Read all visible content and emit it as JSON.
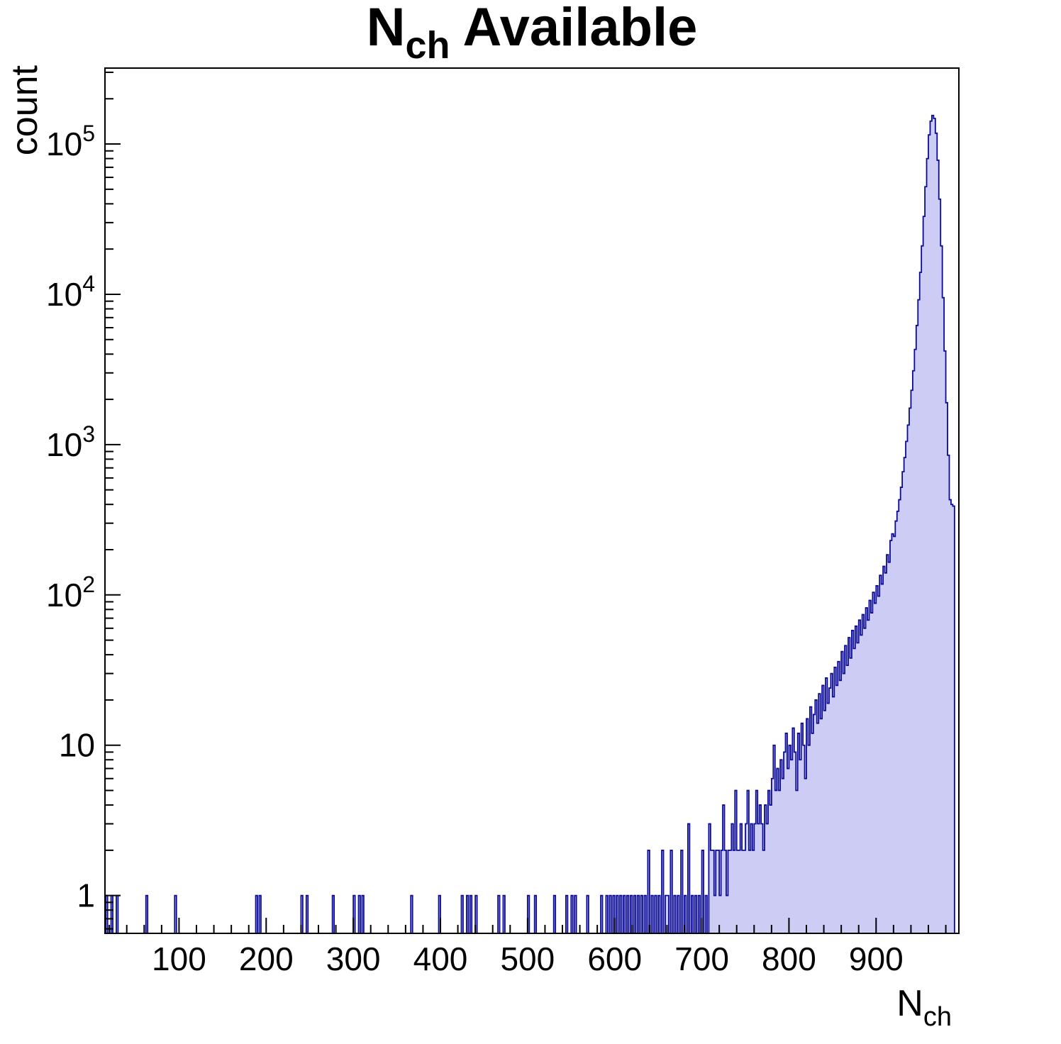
{
  "page": {
    "background": "#ffffff"
  },
  "chart_data": {
    "type": "histogram",
    "title": {
      "main": "N",
      "sub": "ch",
      "rest": "Available"
    },
    "ylabel": "count",
    "xlabel": {
      "main": "N",
      "sub": "ch"
    },
    "x_range": [
      15,
      995
    ],
    "y_range": [
      0.56,
      320000
    ],
    "y_scale": "log",
    "grid": false,
    "bin_width": 2,
    "x_ticks": [
      100,
      200,
      300,
      400,
      500,
      600,
      700,
      800,
      900
    ],
    "x_minor_step": 20,
    "y_ticks": [
      1,
      10,
      100,
      1000,
      10000,
      100000
    ],
    "colors": {
      "fill": "#ccccf4",
      "line": "#0a0a96",
      "axis": "#000000",
      "text": "#000000"
    },
    "bins": [
      [
        16,
        1
      ],
      [
        22,
        1
      ],
      [
        28,
        1
      ],
      [
        62,
        1
      ],
      [
        95,
        1
      ],
      [
        188,
        1
      ],
      [
        192,
        1
      ],
      [
        240,
        1
      ],
      [
        246,
        1
      ],
      [
        276,
        1
      ],
      [
        300,
        1
      ],
      [
        306,
        1
      ],
      [
        310,
        1
      ],
      [
        366,
        1
      ],
      [
        398,
        1
      ],
      [
        424,
        1
      ],
      [
        430,
        1
      ],
      [
        434,
        1
      ],
      [
        440,
        1
      ],
      [
        466,
        1
      ],
      [
        472,
        1
      ],
      [
        500,
        1
      ],
      [
        508,
        1
      ],
      [
        530,
        1
      ],
      [
        544,
        1
      ],
      [
        550,
        1
      ],
      [
        554,
        1
      ],
      [
        568,
        1
      ],
      [
        584,
        1
      ],
      [
        590,
        1
      ],
      [
        594,
        1
      ],
      [
        598,
        1
      ],
      [
        602,
        1
      ],
      [
        606,
        1
      ],
      [
        610,
        1
      ],
      [
        614,
        1
      ],
      [
        618,
        1
      ],
      [
        622,
        1
      ],
      [
        626,
        1
      ],
      [
        630,
        1
      ],
      [
        634,
        1
      ],
      [
        638,
        2
      ],
      [
        642,
        1
      ],
      [
        646,
        1
      ],
      [
        650,
        1
      ],
      [
        654,
        2
      ],
      [
        658,
        1
      ],
      [
        660,
        1
      ],
      [
        664,
        2
      ],
      [
        668,
        1
      ],
      [
        672,
        1
      ],
      [
        676,
        2
      ],
      [
        680,
        1
      ],
      [
        684,
        3
      ],
      [
        688,
        1
      ],
      [
        692,
        1
      ],
      [
        696,
        1
      ],
      [
        700,
        2
      ],
      [
        704,
        1
      ],
      [
        708,
        3
      ],
      [
        710,
        2
      ],
      [
        712,
        2
      ],
      [
        714,
        1
      ],
      [
        716,
        2
      ],
      [
        718,
        2
      ],
      [
        720,
        1
      ],
      [
        722,
        2
      ],
      [
        724,
        4
      ],
      [
        726,
        2
      ],
      [
        728,
        1
      ],
      [
        730,
        2
      ],
      [
        732,
        2
      ],
      [
        734,
        3
      ],
      [
        736,
        2
      ],
      [
        738,
        5
      ],
      [
        740,
        2
      ],
      [
        742,
        2
      ],
      [
        744,
        3
      ],
      [
        746,
        2
      ],
      [
        748,
        2
      ],
      [
        750,
        3
      ],
      [
        752,
        5
      ],
      [
        754,
        2
      ],
      [
        756,
        3
      ],
      [
        758,
        2
      ],
      [
        760,
        3
      ],
      [
        762,
        5
      ],
      [
        764,
        3
      ],
      [
        766,
        4
      ],
      [
        768,
        3
      ],
      [
        770,
        2
      ],
      [
        772,
        4
      ],
      [
        774,
        3
      ],
      [
        776,
        5
      ],
      [
        778,
        4
      ],
      [
        780,
        6
      ],
      [
        782,
        10
      ],
      [
        784,
        5
      ],
      [
        786,
        7
      ],
      [
        788,
        5
      ],
      [
        790,
        8
      ],
      [
        792,
        6
      ],
      [
        794,
        9
      ],
      [
        796,
        12
      ],
      [
        798,
        7
      ],
      [
        800,
        10
      ],
      [
        802,
        8
      ],
      [
        804,
        13
      ],
      [
        806,
        9
      ],
      [
        808,
        5
      ],
      [
        810,
        12
      ],
      [
        812,
        8
      ],
      [
        814,
        14
      ],
      [
        816,
        10
      ],
      [
        818,
        6
      ],
      [
        820,
        15
      ],
      [
        822,
        10
      ],
      [
        824,
        18
      ],
      [
        826,
        12
      ],
      [
        828,
        16
      ],
      [
        830,
        20
      ],
      [
        832,
        14
      ],
      [
        834,
        22
      ],
      [
        836,
        15
      ],
      [
        838,
        25
      ],
      [
        840,
        17
      ],
      [
        842,
        28
      ],
      [
        844,
        19
      ],
      [
        846,
        24
      ],
      [
        848,
        30
      ],
      [
        850,
        21
      ],
      [
        852,
        33
      ],
      [
        854,
        25
      ],
      [
        856,
        36
      ],
      [
        858,
        27
      ],
      [
        860,
        42
      ],
      [
        862,
        30
      ],
      [
        864,
        46
      ],
      [
        866,
        34
      ],
      [
        868,
        52
      ],
      [
        870,
        38
      ],
      [
        872,
        58
      ],
      [
        874,
        44
      ],
      [
        876,
        62
      ],
      [
        878,
        48
      ],
      [
        880,
        68
      ],
      [
        882,
        54
      ],
      [
        884,
        74
      ],
      [
        886,
        60
      ],
      [
        888,
        82
      ],
      [
        890,
        68
      ],
      [
        892,
        92
      ],
      [
        894,
        76
      ],
      [
        896,
        104
      ],
      [
        898,
        88
      ],
      [
        900,
        115
      ],
      [
        902,
        98
      ],
      [
        904,
        135
      ],
      [
        906,
        118
      ],
      [
        908,
        155
      ],
      [
        910,
        140
      ],
      [
        912,
        185
      ],
      [
        914,
        165
      ],
      [
        916,
        230
      ],
      [
        918,
        255
      ],
      [
        920,
        245
      ],
      [
        922,
        310
      ],
      [
        924,
        360
      ],
      [
        926,
        430
      ],
      [
        928,
        520
      ],
      [
        930,
        660
      ],
      [
        932,
        820
      ],
      [
        934,
        1050
      ],
      [
        936,
        1350
      ],
      [
        938,
        1750
      ],
      [
        940,
        2300
      ],
      [
        942,
        3100
      ],
      [
        944,
        4300
      ],
      [
        946,
        6200
      ],
      [
        948,
        9200
      ],
      [
        950,
        14000
      ],
      [
        952,
        21000
      ],
      [
        954,
        33000
      ],
      [
        956,
        52000
      ],
      [
        958,
        80000
      ],
      [
        960,
        115000
      ],
      [
        962,
        142000
      ],
      [
        964,
        155000
      ],
      [
        966,
        148000
      ],
      [
        968,
        118000
      ],
      [
        970,
        78000
      ],
      [
        972,
        43000
      ],
      [
        974,
        21000
      ],
      [
        976,
        9500
      ],
      [
        978,
        4200
      ],
      [
        980,
        1900
      ],
      [
        982,
        850
      ],
      [
        984,
        430
      ],
      [
        986,
        400
      ],
      [
        988,
        390
      ]
    ]
  }
}
